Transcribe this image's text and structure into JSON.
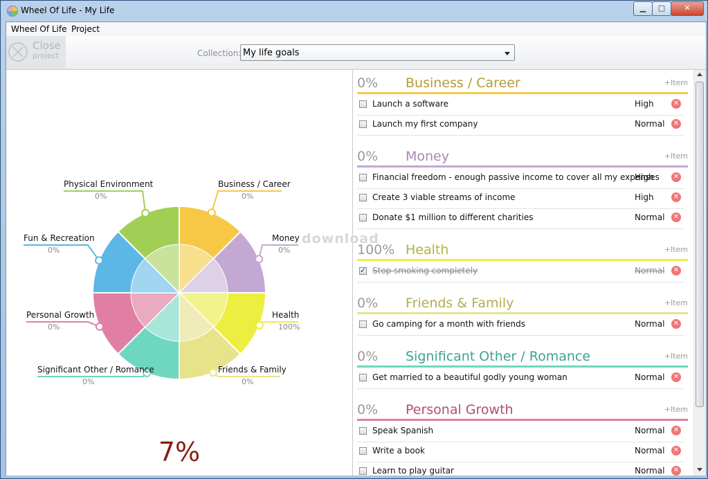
{
  "window": {
    "title": "Wheel Of Life - My Life",
    "min_glyph": "▁",
    "max_glyph": "□",
    "close_glyph": "✕"
  },
  "menu": {
    "items": [
      {
        "label": "Wheel Of Life"
      },
      {
        "label": "Project"
      }
    ]
  },
  "toolbar": {
    "close_label": "Close",
    "close_sub": "project",
    "collection_label": "Collection:",
    "collection_value": "My life goals"
  },
  "wheel": {
    "total": "7%",
    "segments": [
      {
        "label": "Business / Career",
        "pct": "0%",
        "color": "#f6c845",
        "inner": "#f8df8e"
      },
      {
        "label": "Money",
        "pct": "0%",
        "color": "#c3a8d3",
        "inner": "#ded0e6"
      },
      {
        "label": "Health",
        "pct": "100%",
        "color": "#eeee40",
        "inner": "#f3f38c"
      },
      {
        "label": "Friends & Family",
        "pct": "0%",
        "color": "#e7e38b",
        "inner": "#efecb9"
      },
      {
        "label": "Significant Other / Romance",
        "pct": "0%",
        "color": "#6dd7c0",
        "inner": "#a7e6d9"
      },
      {
        "label": "Personal Growth",
        "pct": "0%",
        "color": "#e07fa3",
        "inner": "#eaaac0"
      },
      {
        "label": "Fun & Recreation",
        "pct": "0%",
        "color": "#5cb6e6",
        "inner": "#9fd5f0"
      },
      {
        "label": "Physical Environment",
        "pct": "0%",
        "color": "#a1cf55",
        "inner": "#c9e39d"
      }
    ]
  },
  "watermark": "download",
  "categories": [
    {
      "pct": "0%",
      "title": "Business / Career",
      "color": "#b69b33",
      "line": "#f6c845",
      "add": "+Item",
      "tasks": [
        {
          "text": "Launch a software",
          "priority": "High",
          "done": false
        },
        {
          "text": "Launch my first company",
          "priority": "Normal",
          "done": false
        }
      ]
    },
    {
      "pct": "0%",
      "title": "Money",
      "color": "#a48bb3",
      "line": "#c3a8d3",
      "add": "+Item",
      "tasks": [
        {
          "text": "Financial freedom - enough passive income to cover all my expenses",
          "priority": "High",
          "done": false
        },
        {
          "text": "Create 3 viable streams of income",
          "priority": "High",
          "done": false
        },
        {
          "text": "Donate $1 million to different charities",
          "priority": "Normal",
          "done": false
        }
      ]
    },
    {
      "pct": "100%",
      "title": "Health",
      "color": "#b4b23a",
      "line": "#eeee40",
      "add": "+Item",
      "tasks": [
        {
          "text": "Stop smoking completely",
          "priority": "Normal",
          "done": true
        }
      ]
    },
    {
      "pct": "0%",
      "title": "Friends & Family",
      "color": "#b1ad4f",
      "line": "#e7e38b",
      "add": "+Item",
      "tasks": [
        {
          "text": "Go camping for a month with friends",
          "priority": "Normal",
          "done": false
        }
      ]
    },
    {
      "pct": "0%",
      "title": "Significant Other / Romance",
      "color": "#3ca48d",
      "line": "#6dd7c0",
      "add": "+Item",
      "tasks": [
        {
          "text": "Get married to a beautiful godly young woman",
          "priority": "Normal",
          "done": false
        }
      ]
    },
    {
      "pct": "0%",
      "title": "Personal Growth",
      "color": "#b44d73",
      "line": "#e07fa3",
      "add": "+Item",
      "tasks": [
        {
          "text": "Speak Spanish",
          "priority": "Normal",
          "done": false
        },
        {
          "text": "Write a book",
          "priority": "Normal",
          "done": false
        },
        {
          "text": "Learn to play guitar",
          "priority": "Normal",
          "done": false
        }
      ]
    }
  ]
}
